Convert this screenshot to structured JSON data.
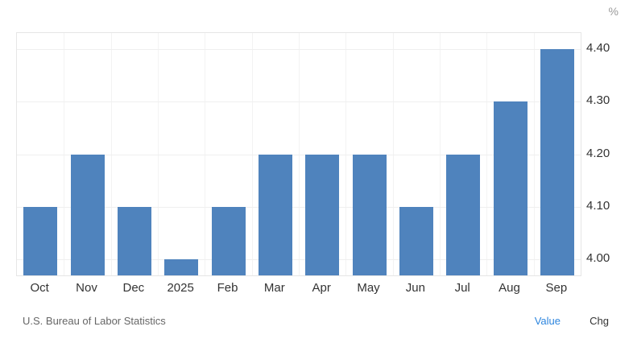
{
  "chart_data": {
    "type": "bar",
    "title": "",
    "categories": [
      "Oct",
      "Nov",
      "Dec",
      "2025",
      "Feb",
      "Mar",
      "Apr",
      "May",
      "Jun",
      "Jul",
      "Aug",
      "Sep"
    ],
    "values": [
      4.1,
      4.2,
      4.1,
      4.0,
      4.1,
      4.2,
      4.2,
      4.2,
      4.1,
      4.2,
      4.3,
      4.4
    ],
    "xlabel": "",
    "ylabel": "%",
    "ylim": [
      3.97,
      4.43
    ],
    "yticks": [
      4.0,
      4.1,
      4.2,
      4.3,
      4.4
    ],
    "ytick_labels": [
      "4.00",
      "4.10",
      "4.20",
      "4.30",
      "4.40"
    ],
    "grid": "on",
    "legend_position": "none",
    "bar_color": "#4f83bd"
  },
  "axes": {
    "unit_label": "%"
  },
  "footer": {
    "source": "U.S. Bureau of Labor Statistics",
    "value_label": "Value",
    "chg_label": "Chg"
  }
}
